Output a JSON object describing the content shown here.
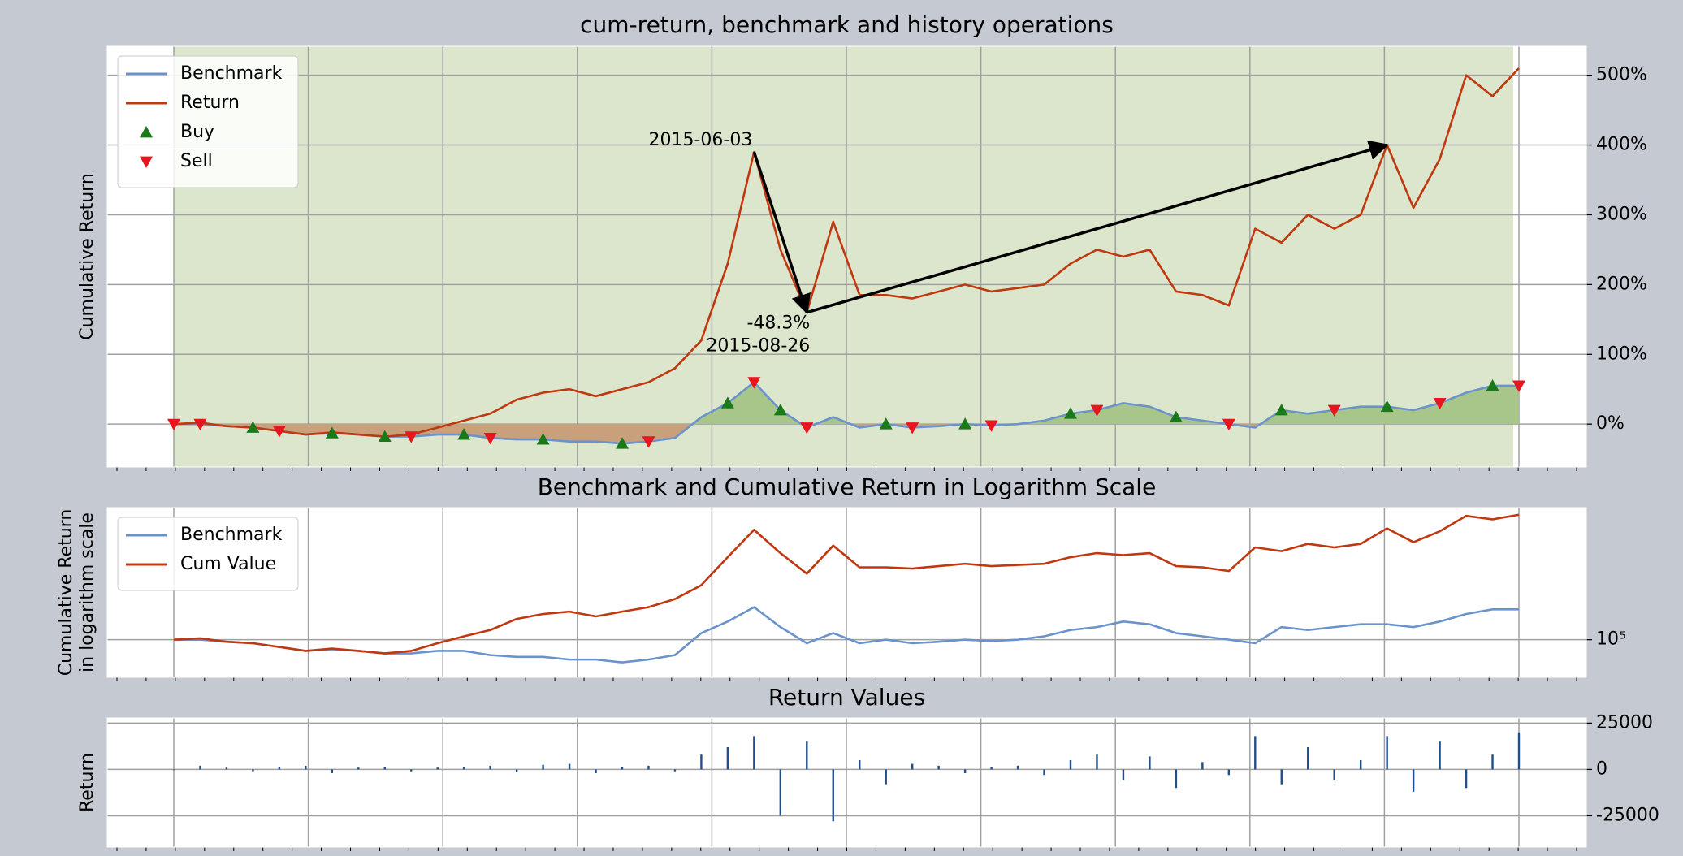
{
  "chart_data": [
    {
      "type": "line",
      "title": "cum-return, benchmark and history operations",
      "ylabel": "Cumulative Return",
      "categories": [
        null,
        null,
        null,
        null,
        null,
        null,
        null,
        null,
        null,
        null,
        null,
        null,
        null,
        null,
        null,
        null,
        null,
        null,
        null,
        null,
        null,
        null,
        null,
        null,
        null,
        null,
        null,
        null,
        null,
        null,
        null,
        null,
        null,
        null,
        null,
        null,
        null,
        null,
        null,
        null,
        null,
        null,
        null,
        null,
        null,
        null,
        null,
        null,
        null,
        null,
        null,
        null
      ],
      "ylim": [
        -61.5,
        541.5
      ],
      "yticks": [
        {
          "value": 0,
          "label": "0%"
        },
        {
          "value": 100,
          "label": "100%"
        },
        {
          "value": 200,
          "label": "200%"
        },
        {
          "value": 300,
          "label": "300%"
        },
        {
          "value": 400,
          "label": "400%"
        },
        {
          "value": 500,
          "label": "500%"
        }
      ],
      "grid": true,
      "legend": "upper left",
      "shade_color": "#dce6cc",
      "series": [
        {
          "name": "Benchmark",
          "color": "#6b93cb",
          "fill_above": "#a9c68a",
          "fill_below": "#c9a07c",
          "values": [
            0,
            0,
            -3,
            -5,
            -10,
            -15,
            -13,
            -15,
            -18,
            -18,
            -15,
            -15,
            -20,
            -22,
            -22,
            -25,
            -25,
            -28,
            -25,
            -20,
            10,
            30,
            60,
            20,
            -5,
            10,
            -5,
            0,
            -5,
            -3,
            0,
            -2,
            0,
            5,
            15,
            20,
            30,
            25,
            10,
            5,
            0,
            -5,
            20,
            15,
            20,
            25,
            25,
            20,
            30,
            45,
            55,
            55
          ]
        },
        {
          "name": "Return",
          "color": "#c0380f",
          "values": [
            0,
            2,
            -3,
            -5,
            -10,
            -15,
            -12,
            -15,
            -18,
            -15,
            -5,
            5,
            15,
            35,
            45,
            50,
            40,
            50,
            60,
            80,
            120,
            230,
            390,
            250,
            160,
            290,
            185,
            185,
            180,
            190,
            200,
            190,
            195,
            200,
            230,
            250,
            240,
            250,
            190,
            185,
            170,
            280,
            260,
            300,
            280,
            300,
            400,
            310,
            380,
            500,
            470,
            510
          ]
        },
        {
          "name": "Buy",
          "color": "#1a7a1a",
          "marker": "triangle-up",
          "values": [
            null,
            null,
            null,
            -5,
            null,
            null,
            -13,
            null,
            -18,
            null,
            null,
            -15,
            null,
            null,
            -22,
            null,
            null,
            -28,
            null,
            null,
            null,
            30,
            null,
            20,
            null,
            null,
            null,
            0,
            null,
            null,
            0,
            null,
            null,
            null,
            15,
            null,
            null,
            null,
            10,
            null,
            null,
            null,
            20,
            null,
            null,
            null,
            25,
            null,
            null,
            null,
            55,
            null
          ]
        },
        {
          "name": "Sell",
          "color": "#e8141e",
          "marker": "triangle-down",
          "values": [
            0,
            0,
            null,
            null,
            -10,
            null,
            null,
            null,
            null,
            -18,
            null,
            null,
            -20,
            null,
            null,
            null,
            null,
            null,
            -25,
            null,
            null,
            null,
            60,
            null,
            -5,
            null,
            null,
            null,
            -5,
            null,
            null,
            -2,
            null,
            null,
            null,
            20,
            null,
            null,
            null,
            null,
            0,
            null,
            null,
            null,
            20,
            null,
            null,
            null,
            30,
            null,
            null,
            55
          ]
        }
      ],
      "annotations": [
        "2015-06-03",
        "-48.3%",
        "2015-08-26"
      ]
    },
    {
      "type": "line",
      "title": "Benchmark and Cumulative Return in Logarithm Scale",
      "ylabel": [
        "Cumulative Return",
        "in logarithm scale"
      ],
      "categories": [
        null,
        null,
        null,
        null,
        null,
        null,
        null,
        null,
        null,
        null,
        null,
        null,
        null,
        null,
        null,
        null,
        null,
        null,
        null,
        null,
        null,
        null,
        null,
        null,
        null,
        null,
        null,
        null,
        null,
        null,
        null,
        null,
        null,
        null,
        null,
        null,
        null,
        null,
        null,
        null,
        null,
        null,
        null,
        null,
        null,
        null,
        null,
        null,
        null,
        null,
        null,
        null
      ],
      "log_scale": true,
      "ylim": [
        58000,
        676000
      ],
      "yticks": [
        {
          "value": 100000,
          "label": "10⁵"
        }
      ],
      "grid": true,
      "legend": "upper left",
      "series": [
        {
          "name": "Benchmark",
          "color": "#6b93cb",
          "values": [
            100000,
            100000,
            97000,
            95000,
            90000,
            85000,
            87000,
            85000,
            82000,
            82000,
            85000,
            85000,
            80000,
            78000,
            78000,
            75000,
            75000,
            72000,
            75000,
            80000,
            110000,
            130000,
            160000,
            120000,
            95000,
            110000,
            95000,
            100000,
            95000,
            97000,
            100000,
            98000,
            100000,
            105000,
            115000,
            120000,
            130000,
            125000,
            110000,
            105000,
            100000,
            95000,
            120000,
            115000,
            120000,
            125000,
            125000,
            120000,
            130000,
            145000,
            155000,
            155000
          ]
        },
        {
          "name": "Cum Value",
          "color": "#c0380f",
          "values": [
            100000,
            102000,
            97000,
            95000,
            90000,
            85000,
            88000,
            85000,
            82000,
            85000,
            95000,
            105000,
            115000,
            135000,
            145000,
            150000,
            140000,
            150000,
            160000,
            180000,
            220000,
            330000,
            490000,
            350000,
            260000,
            390000,
            285000,
            285000,
            280000,
            290000,
            300000,
            290000,
            295000,
            300000,
            330000,
            350000,
            340000,
            350000,
            290000,
            285000,
            270000,
            380000,
            360000,
            400000,
            380000,
            400000,
            500000,
            410000,
            480000,
            600000,
            570000,
            610000
          ]
        }
      ]
    },
    {
      "type": "bar",
      "title": "Return Values",
      "ylabel": "Return",
      "categories": [
        null,
        null,
        null,
        null,
        null,
        null,
        null,
        null,
        null,
        null,
        null,
        null,
        null,
        null,
        null,
        null,
        null,
        null,
        null,
        null,
        null,
        null,
        null,
        null,
        null,
        null,
        null,
        null,
        null,
        null,
        null,
        null,
        null,
        null,
        null,
        null,
        null,
        null,
        null,
        null,
        null,
        null,
        null,
        null,
        null,
        null,
        null,
        null,
        null,
        null,
        null,
        null
      ],
      "ylim": [
        -41900,
        27800
      ],
      "yticks": [
        -25000,
        0,
        25000
      ],
      "grid": true,
      "color": "#1f4e8c",
      "values": [
        0,
        2000,
        1000,
        -1000,
        1500,
        2000,
        -2000,
        1000,
        1500,
        -1000,
        1000,
        1500,
        2000,
        -1500,
        2500,
        3000,
        -2000,
        1500,
        2000,
        -1000,
        8000,
        12000,
        18000,
        -25000,
        15000,
        -28000,
        5000,
        -8000,
        3000,
        2000,
        -2000,
        1500,
        2000,
        -3000,
        5000,
        8000,
        -6000,
        7000,
        -10000,
        4000,
        -3000,
        18000,
        -8000,
        12000,
        -6000,
        5000,
        18000,
        -12000,
        15000,
        -10000,
        8000,
        20000
      ]
    }
  ]
}
